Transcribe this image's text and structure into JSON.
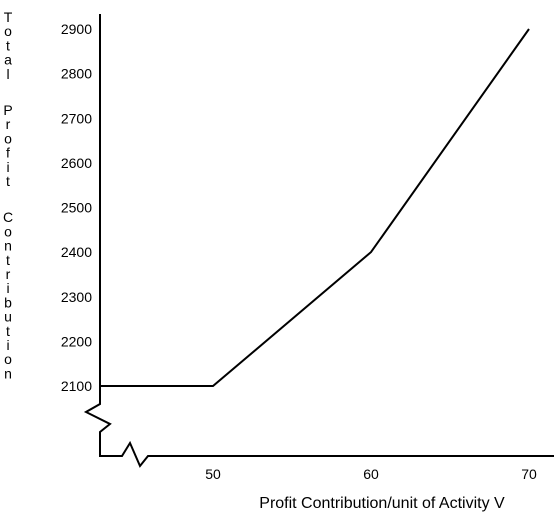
{
  "chart_data": {
    "type": "line",
    "xlabel": "Profit  Contribution/unit of Activity V",
    "ylabel": "Total Profit Contribution",
    "x_ticks": [
      50,
      60,
      70
    ],
    "y_ticks": [
      2100,
      2200,
      2300,
      2400,
      2500,
      2600,
      2700,
      2800,
      2900
    ],
    "xlim": [
      42,
      72
    ],
    "ylim": [
      2100,
      2900
    ],
    "axis_breaks": [
      "x",
      "y"
    ],
    "grid": false,
    "series": [
      {
        "x": [
          42,
          50,
          60,
          70
        ],
        "y": [
          2100,
          2100,
          2400,
          2900
        ]
      }
    ]
  }
}
